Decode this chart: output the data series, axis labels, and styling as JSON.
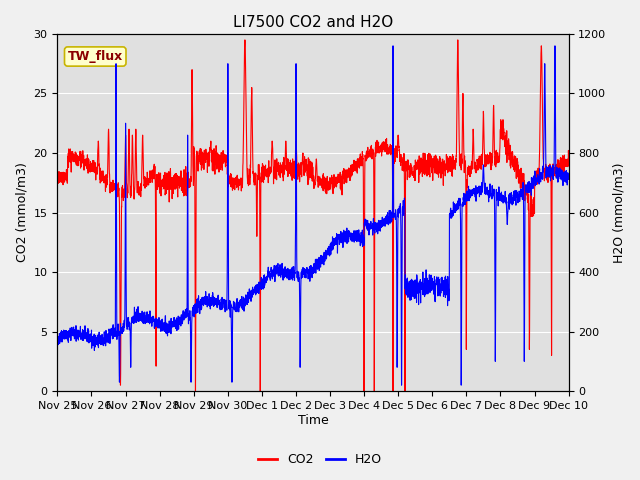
{
  "title": "LI7500 CO2 and H2O",
  "xlabel": "Time",
  "ylabel_left": "CO2 (mmol/m3)",
  "ylabel_right": "H2O (mmol/m3)",
  "ylim_left": [
    0,
    30
  ],
  "ylim_right": [
    0,
    1200
  ],
  "yticks_left": [
    0,
    5,
    10,
    15,
    20,
    25,
    30
  ],
  "yticks_right": [
    0,
    200,
    400,
    600,
    800,
    1000,
    1200
  ],
  "x_tick_labels": [
    "Nov 25",
    "Nov 26",
    "Nov 27",
    "Nov 28",
    "Nov 29",
    "Nov 30",
    "Dec 1",
    "Dec 2",
    "Dec 3",
    "Dec 4",
    "Dec 5",
    "Dec 6",
    "Dec 7",
    "Dec 8",
    "Dec 9",
    "Dec 10"
  ],
  "co2_color": "red",
  "h2o_color": "blue",
  "fig_bg_color": "#f0f0f0",
  "plot_bg_color": "#e0e0e0",
  "legend_label_co2": "CO2",
  "legend_label_h2o": "H2O",
  "annotation_text": "TW_flux",
  "annotation_bg": "#ffffcc",
  "annotation_border": "#c8b400",
  "title_fontsize": 11,
  "axis_label_fontsize": 9,
  "tick_fontsize": 8,
  "legend_fontsize": 9,
  "line_width": 0.8
}
